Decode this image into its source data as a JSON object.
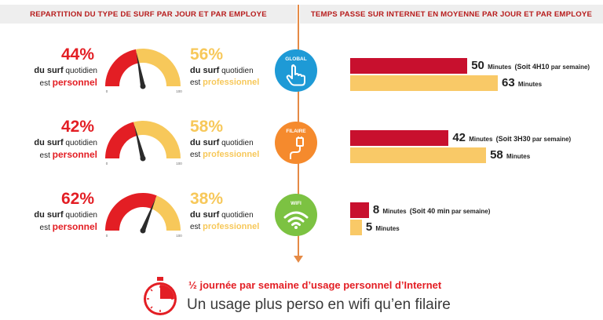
{
  "header": {
    "left": "REPARTITION DU TYPE DE SURF PAR JOUR ET PAR EMPLOYE",
    "right": "TEMPS PASSE SUR INTERNET EN MOYENNE PAR JOUR ET PAR EMPLOYE"
  },
  "desc": {
    "du_surf": "du surf",
    "quotidien": "quotidien",
    "est": "est",
    "personnel": "personnel",
    "professionnel": "professionnel",
    "minutes": "Minutes",
    "par_semaine": "par semaine"
  },
  "gauge_ticks": {
    "min": "0",
    "max": "100"
  },
  "rows": [
    {
      "icon_label": "GLOBAL",
      "icon": "pointing-hand-icon",
      "color": "#1e9ad6",
      "personal_pct": "44%",
      "pro_pct": "56%",
      "personal_minutes": "50",
      "pro_minutes": "63",
      "weekly_note": "(Soit 4H10",
      "weekly_suffix": "par semaine)"
    },
    {
      "icon_label": "FILAIRE",
      "icon": "cable-plug-icon",
      "color": "#f58a2d",
      "personal_pct": "42%",
      "pro_pct": "58%",
      "personal_minutes": "42",
      "pro_minutes": "58",
      "weekly_note": "(Soit 3H30",
      "weekly_suffix": "par semaine)"
    },
    {
      "icon_label": "WIFI",
      "icon": "wifi-icon",
      "color": "#7cc242",
      "personal_pct": "62%",
      "pro_pct": "38%",
      "personal_minutes": "8",
      "pro_minutes": "5",
      "weekly_note": "(Soit 40 min",
      "weekly_suffix": "par semaine)"
    }
  ],
  "bottom": {
    "line1": "½ journée par semaine d’usage personnel d’Internet",
    "line2": "Un usage plus perso en wifi qu’en filaire",
    "icon": "stopwatch-icon"
  },
  "colors": {
    "personal": "#e31e24",
    "personal_bar": "#c8102e",
    "pro": "#f7c85a",
    "accent_line": "#e58a45"
  },
  "chart_data": [
    {
      "type": "gauge",
      "categories": [
        "GLOBAL",
        "FILAIRE",
        "WIFI"
      ],
      "series": [
        {
          "name": "personnel",
          "values": [
            44,
            42,
            62
          ]
        },
        {
          "name": "professionnel",
          "values": [
            56,
            58,
            38
          ]
        }
      ],
      "title": "REPARTITION DU TYPE DE SURF PAR JOUR ET PAR EMPLOYE",
      "ylim": [
        0,
        100
      ]
    },
    {
      "type": "bar",
      "orientation": "horizontal",
      "categories": [
        "GLOBAL",
        "FILAIRE",
        "WIFI"
      ],
      "series": [
        {
          "name": "personnel",
          "values": [
            50,
            42,
            8
          ]
        },
        {
          "name": "professionnel",
          "values": [
            63,
            58,
            5
          ]
        }
      ],
      "title": "TEMPS PASSE SUR INTERNET EN MOYENNE PAR JOUR ET PAR EMPLOYE",
      "xlim": [
        0,
        63
      ]
    }
  ]
}
